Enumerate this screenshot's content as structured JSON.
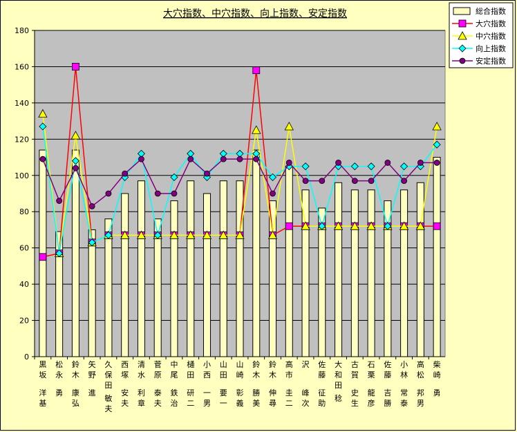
{
  "chart_data": {
    "type": "bar+line",
    "title": "大穴指数、中穴指数、向上指数、安定指数",
    "ylim": [
      0,
      180
    ],
    "yticks": [
      0,
      20,
      40,
      60,
      80,
      100,
      120,
      140,
      160,
      180
    ],
    "grid": true,
    "legend_position": "top-right",
    "categories": [
      [
        "黒坂",
        "洋基"
      ],
      [
        "松永",
        "勇"
      ],
      [
        "鈴木",
        "康弘"
      ],
      [
        "矢野",
        "進"
      ],
      [
        "久保田",
        "敏夫"
      ],
      [
        "西塚",
        "安夫"
      ],
      [
        "清水",
        "利章"
      ],
      [
        "菅原",
        "泰夫"
      ],
      [
        "中尾",
        "鉄治"
      ],
      [
        "樋田",
        "研二"
      ],
      [
        "小西",
        "一男"
      ],
      [
        "山田",
        "要一"
      ],
      [
        "山崎",
        "彰義"
      ],
      [
        "鈴木",
        "勝美"
      ],
      [
        "鈴木",
        "伸尋"
      ],
      [
        "高市",
        "圭二"
      ],
      [
        "沢",
        "峰次"
      ],
      [
        "佐藤",
        "征助"
      ],
      [
        "大和田",
        "稔"
      ],
      [
        "古賀",
        "史生"
      ],
      [
        "石栗",
        "龍彦"
      ],
      [
        "佐藤",
        "吉勝"
      ],
      [
        "小林",
        "常泰"
      ],
      [
        "高松",
        "邦男"
      ],
      [
        "柴崎",
        "勇"
      ]
    ],
    "series": [
      {
        "name": "総合指数",
        "type": "bar",
        "color": "#ffffc0",
        "values": [
          114,
          69,
          114,
          70,
          76,
          90,
          97,
          76,
          86,
          97,
          90,
          97,
          97,
          114,
          86,
          105,
          92,
          82,
          96,
          92,
          92,
          86,
          92,
          96,
          110
        ]
      },
      {
        "name": "大穴指数",
        "type": "line",
        "color": "#ff0000",
        "marker": "square",
        "marker_color": "#ff00ff",
        "values": [
          55,
          57,
          160,
          63,
          67,
          67,
          67,
          67,
          67,
          67,
          67,
          67,
          67,
          158,
          67,
          72,
          72,
          72,
          72,
          72,
          72,
          72,
          72,
          72,
          72
        ]
      },
      {
        "name": "中穴指数",
        "type": "line",
        "color": "#ffff00",
        "marker": "triangle",
        "marker_color": "#ffff00",
        "values": [
          134,
          57,
          122,
          63,
          67,
          67,
          67,
          67,
          67,
          67,
          67,
          67,
          67,
          125,
          67,
          127,
          72,
          72,
          72,
          72,
          72,
          72,
          72,
          72,
          127
        ]
      },
      {
        "name": "向上指数",
        "type": "line",
        "color": "#00ffff",
        "marker": "diamond",
        "marker_color": "#00ffff",
        "values": [
          127,
          57,
          108,
          63,
          67,
          99,
          112,
          67,
          99,
          112,
          99,
          112,
          112,
          112,
          99,
          105,
          105,
          72,
          105,
          105,
          105,
          72,
          105,
          105,
          117
        ]
      },
      {
        "name": "安定指数",
        "type": "line",
        "color": "#800080",
        "marker": "circle",
        "marker_color": "#800080",
        "values": [
          109,
          86,
          104,
          83,
          90,
          101,
          109,
          90,
          90,
          109,
          101,
          109,
          109,
          109,
          90,
          107,
          97,
          97,
          107,
          97,
          97,
          107,
          97,
          107,
          107
        ]
      }
    ]
  }
}
